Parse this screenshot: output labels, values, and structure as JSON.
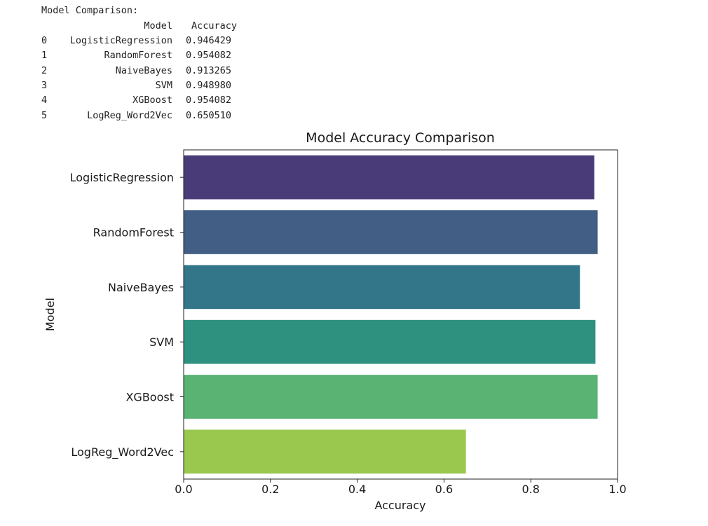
{
  "console": {
    "title": "Model Comparison:",
    "header_model": "Model",
    "header_accuracy": "Accuracy",
    "rows": [
      {
        "index": "0",
        "model": "LogisticRegression",
        "accuracy": "0.946429"
      },
      {
        "index": "1",
        "model": "RandomForest",
        "accuracy": "0.954082"
      },
      {
        "index": "2",
        "model": "NaiveBayes",
        "accuracy": "0.913265"
      },
      {
        "index": "3",
        "model": "SVM",
        "accuracy": "0.948980"
      },
      {
        "index": "4",
        "model": "XGBoost",
        "accuracy": "0.954082"
      },
      {
        "index": "5",
        "model": "LogReg_Word2Vec",
        "accuracy": "0.650510"
      }
    ]
  },
  "chart_data": {
    "type": "bar",
    "orientation": "horizontal",
    "title": "Model Accuracy Comparison",
    "xlabel": "Accuracy",
    "ylabel": "Model",
    "categories": [
      "LogisticRegression",
      "RandomForest",
      "NaiveBayes",
      "SVM",
      "XGBoost",
      "LogReg_Word2Vec"
    ],
    "values": [
      0.946429,
      0.954082,
      0.913265,
      0.94898,
      0.954082,
      0.65051
    ],
    "colors": [
      "#483b78",
      "#425e85",
      "#33768a",
      "#2e9180",
      "#5ab273",
      "#9ac74e"
    ],
    "xlim": [
      0.0,
      1.0
    ],
    "xticks": [
      "0.0",
      "0.2",
      "0.4",
      "0.6",
      "0.8",
      "1.0"
    ],
    "grid": false
  }
}
